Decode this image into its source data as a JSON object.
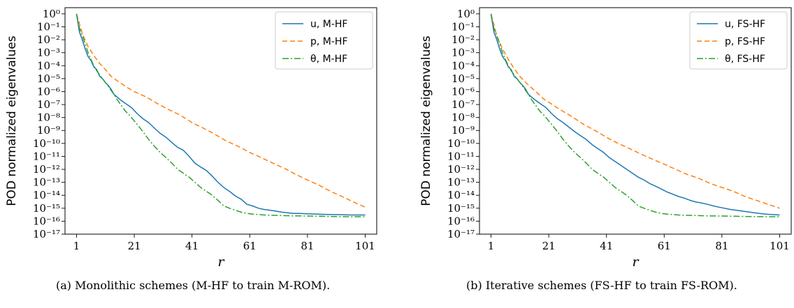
{
  "chart_data": [
    {
      "type": "line",
      "caption": "(a) Monolithic schemes (M-HF to train M-ROM).",
      "xlabel": "r",
      "ylabel": "POD normalized eigenvalues",
      "yscale": "log",
      "xlim": [
        -3,
        105
      ],
      "ylim": [
        1e-17,
        3
      ],
      "xticks": [
        1,
        21,
        41,
        61,
        81,
        101
      ],
      "yticks": [
        0,
        -1,
        -2,
        -3,
        -4,
        -5,
        -6,
        -7,
        -8,
        -9,
        -10,
        -11,
        -12,
        -13,
        -14,
        -15,
        -16,
        -17
      ],
      "grid": false,
      "legend_position": "top-right",
      "series": [
        {
          "name": "u, M-HF",
          "color": "#1f77b4",
          "style": "solid",
          "x": [
            1,
            2,
            3,
            4,
            5,
            6,
            7,
            8,
            9,
            10,
            11,
            12,
            13,
            14,
            16,
            18,
            20,
            22,
            24,
            26,
            28,
            30,
            32,
            34,
            36,
            38,
            40,
            42,
            44,
            46,
            48,
            50,
            52,
            54,
            56,
            58,
            60,
            62,
            64,
            66,
            68,
            70,
            72,
            74,
            76,
            78,
            80,
            84,
            88,
            92,
            96,
            101
          ],
          "y": [
            1,
            0.04,
            0.01,
            0.002,
            0.0005,
            0.00025,
            8e-05,
            5e-05,
            1.5e-05,
            1e-05,
            5e-06,
            3e-06,
            1.5e-06,
            6e-07,
            2.5e-07,
            1.2e-07,
            6e-08,
            2e-08,
            8e-09,
            4e-09,
            1.5e-09,
            6e-10,
            3e-10,
            1.2e-10,
            5e-11,
            3e-11,
            1e-11,
            3e-12,
            1.5e-12,
            8e-13,
            3e-13,
            1e-13,
            4e-14,
            2e-14,
            9e-15,
            5e-15,
            2e-15,
            1.5e-15,
            1e-15,
            8e-16,
            7e-16,
            6e-16,
            5e-16,
            4.5e-16,
            4e-16,
            4e-16,
            3.8e-16,
            3.5e-16,
            3.3e-16,
            3.2e-16,
            3e-16,
            3e-16
          ]
        },
        {
          "name": "p, M-HF",
          "color": "#ff7f0e",
          "style": "dashed",
          "x": [
            1,
            3,
            5,
            7,
            9,
            11,
            13,
            15,
            17,
            19,
            21,
            25,
            29,
            33,
            37,
            41,
            45,
            49,
            53,
            57,
            61,
            65,
            69,
            73,
            77,
            81,
            85,
            89,
            93,
            97,
            101
          ],
          "y": [
            1,
            0.03,
            0.003,
            0.0006,
            0.00015,
            5e-05,
            1.5e-05,
            7e-06,
            3.5e-06,
            1.8e-06,
            1e-06,
            4e-07,
            1.2e-07,
            4e-08,
            1.5e-08,
            4e-09,
            1.5e-09,
            5e-10,
            1.5e-10,
            6e-11,
            2e-11,
            8e-12,
            3e-12,
            1.2e-12,
            4e-13,
            1.5e-13,
            6e-14,
            2e-14,
            8e-15,
            3e-15,
            1.2e-15
          ]
        },
        {
          "name": "θ, M-HF",
          "color": "#2ca02c",
          "style": "dashdot",
          "x": [
            1,
            2,
            3,
            4,
            5,
            6,
            7,
            8,
            9,
            10,
            11,
            12,
            13,
            14,
            15,
            16,
            17,
            18,
            19,
            20,
            22,
            24,
            26,
            28,
            30,
            32,
            34,
            36,
            38,
            40,
            42,
            44,
            46,
            48,
            50,
            52,
            54,
            56,
            58,
            60,
            62,
            66,
            70,
            75,
            80,
            85,
            90,
            95,
            101
          ],
          "y": [
            1,
            0.08,
            0.02,
            0.005,
            0.001,
            0.0003,
            0.0001,
            4e-05,
            2e-05,
            1e-05,
            5e-06,
            2.5e-06,
            1.2e-06,
            6e-07,
            2.5e-07,
            1.2e-07,
            6e-08,
            3e-08,
            1.8e-08,
            1e-08,
            3e-09,
            8e-10,
            2e-10,
            6e-11,
            2e-11,
            8e-12,
            3e-12,
            1e-12,
            5e-13,
            2.5e-13,
            1e-13,
            4e-14,
            2e-14,
            1e-14,
            4e-15,
            1.5e-15,
            1e-15,
            7e-16,
            5e-16,
            4e-16,
            3.5e-16,
            3e-16,
            2.8e-16,
            2.6e-16,
            2.5e-16,
            2.4e-16,
            2.3e-16,
            2.2e-16,
            2.2e-16
          ]
        }
      ]
    },
    {
      "type": "line",
      "caption": "(b) Iterative schemes (FS-HF to train FS-ROM).",
      "xlabel": "r",
      "ylabel": "POD normalized eigenvalues",
      "yscale": "log",
      "xlim": [
        -3,
        105
      ],
      "ylim": [
        1e-17,
        3
      ],
      "xticks": [
        1,
        21,
        41,
        61,
        81,
        101
      ],
      "yticks": [
        0,
        -1,
        -2,
        -3,
        -4,
        -5,
        -6,
        -7,
        -8,
        -9,
        -10,
        -11,
        -12,
        -13,
        -14,
        -15,
        -16,
        -17
      ],
      "grid": false,
      "legend_position": "top-right",
      "series": [
        {
          "name": "u, FS-HF",
          "color": "#1f77b4",
          "style": "solid",
          "x": [
            1,
            2,
            3,
            4,
            5,
            6,
            7,
            8,
            9,
            10,
            11,
            12,
            13,
            14,
            16,
            18,
            20,
            22,
            24,
            26,
            28,
            30,
            32,
            34,
            36,
            38,
            40,
            42,
            44,
            46,
            48,
            50,
            52,
            54,
            56,
            58,
            60,
            62,
            64,
            66,
            68,
            70,
            72,
            74,
            76,
            78,
            80,
            84,
            88,
            92,
            96,
            101
          ],
          "y": [
            1,
            0.04,
            0.01,
            0.002,
            0.0005,
            0.00025,
            8e-05,
            5e-05,
            1.5e-05,
            1e-05,
            5e-06,
            3e-06,
            1.5e-06,
            6e-07,
            2.5e-07,
            1.2e-07,
            6e-08,
            2e-08,
            8e-09,
            4e-09,
            1.8e-09,
            8e-10,
            4e-10,
            2e-10,
            8e-11,
            4e-11,
            2e-11,
            8e-12,
            4e-12,
            2e-12,
            1e-12,
            5e-13,
            2.5e-13,
            1.5e-13,
            8e-14,
            5e-14,
            3e-14,
            1.8e-14,
            1.2e-14,
            8e-15,
            6e-15,
            4e-15,
            3e-15,
            2.5e-15,
            2e-15,
            1.5e-15,
            1.2e-15,
            8e-16,
            6e-16,
            4.5e-16,
            3.5e-16,
            3e-16
          ]
        },
        {
          "name": "p, FS-HF",
          "color": "#ff7f0e",
          "style": "dashed",
          "x": [
            1,
            3,
            5,
            7,
            9,
            11,
            13,
            15,
            17,
            19,
            21,
            25,
            29,
            33,
            37,
            41,
            45,
            49,
            53,
            57,
            61,
            65,
            69,
            73,
            77,
            81,
            85,
            89,
            93,
            97,
            101
          ],
          "y": [
            1,
            0.02,
            0.002,
            0.0003,
            6e-05,
            1.5e-05,
            5e-06,
            2e-06,
            8e-07,
            3e-07,
            1.5e-07,
            4e-08,
            1.2e-08,
            3e-09,
            1e-09,
            3e-10,
            1e-10,
            4e-11,
            1.5e-11,
            6e-12,
            2.5e-12,
            1e-12,
            4e-13,
            2e-13,
            8e-14,
            4e-14,
            2e-14,
            8e-15,
            4e-15,
            2e-15,
            1e-15
          ]
        },
        {
          "name": "θ, FS-HF",
          "color": "#2ca02c",
          "style": "dashdot",
          "x": [
            1,
            2,
            3,
            4,
            5,
            6,
            7,
            8,
            9,
            10,
            11,
            12,
            13,
            14,
            15,
            16,
            17,
            18,
            19,
            20,
            22,
            24,
            26,
            28,
            30,
            32,
            34,
            36,
            38,
            40,
            42,
            44,
            46,
            48,
            50,
            52,
            54,
            56,
            58,
            60,
            62,
            66,
            70,
            75,
            80,
            85,
            90,
            95,
            101
          ],
          "y": [
            1,
            0.08,
            0.02,
            0.005,
            0.001,
            0.0003,
            0.0001,
            4e-05,
            2e-05,
            1e-05,
            5e-06,
            2.5e-06,
            1.2e-06,
            6e-07,
            2.5e-07,
            1.2e-07,
            6e-08,
            3e-08,
            1.8e-08,
            1e-08,
            3e-09,
            8e-10,
            2e-10,
            6e-11,
            2e-11,
            8e-12,
            3e-12,
            1e-12,
            5e-13,
            2.5e-13,
            1e-13,
            4e-14,
            2e-14,
            1e-14,
            4e-15,
            1.5e-15,
            1e-15,
            7e-16,
            5e-16,
            4e-16,
            3.5e-16,
            3e-16,
            2.8e-16,
            2.6e-16,
            2.5e-16,
            2.4e-16,
            2.3e-16,
            2.2e-16,
            2.2e-16
          ]
        }
      ]
    }
  ]
}
